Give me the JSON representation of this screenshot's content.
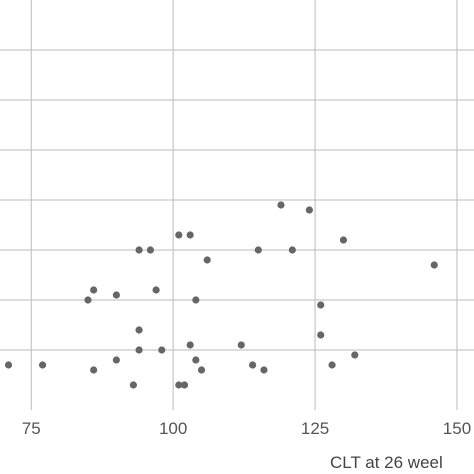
{
  "chart_data": {
    "type": "scatter",
    "title": "",
    "xlabel": "CLT at 26 weel",
    "ylabel": "",
    "grid": true,
    "xlim": [
      69.5,
      153
    ],
    "ylim": [
      0.5,
      8.5
    ],
    "x_ticks": [
      75,
      100,
      125,
      150
    ],
    "x_tick_labels": [
      "75",
      "100",
      "125",
      "150"
    ],
    "y_gridlines": [
      1.5,
      2.5,
      3.5,
      4.5,
      5.5,
      6.5,
      7.5
    ],
    "point_color": "#666666",
    "grid_color": "#bbbbbb",
    "points": [
      {
        "x": 71,
        "y": 1.2
      },
      {
        "x": 77,
        "y": 1.2
      },
      {
        "x": 86,
        "y": 1.1
      },
      {
        "x": 90,
        "y": 1.3
      },
      {
        "x": 93,
        "y": 0.8
      },
      {
        "x": 94,
        "y": 1.5
      },
      {
        "x": 98,
        "y": 1.5
      },
      {
        "x": 101,
        "y": 0.8
      },
      {
        "x": 102,
        "y": 0.8
      },
      {
        "x": 103,
        "y": 1.6
      },
      {
        "x": 104,
        "y": 1.3
      },
      {
        "x": 105,
        "y": 1.1
      },
      {
        "x": 112,
        "y": 1.6
      },
      {
        "x": 114,
        "y": 1.2
      },
      {
        "x": 116,
        "y": 1.1
      },
      {
        "x": 128,
        "y": 1.2
      },
      {
        "x": 132,
        "y": 1.4
      },
      {
        "x": 94,
        "y": 1.9
      },
      {
        "x": 126,
        "y": 1.8
      },
      {
        "x": 85,
        "y": 2.5
      },
      {
        "x": 86,
        "y": 2.7
      },
      {
        "x": 90,
        "y": 2.6
      },
      {
        "x": 97,
        "y": 2.7
      },
      {
        "x": 104,
        "y": 2.5
      },
      {
        "x": 126,
        "y": 2.4
      },
      {
        "x": 106,
        "y": 3.3
      },
      {
        "x": 146,
        "y": 3.2
      },
      {
        "x": 94,
        "y": 3.5
      },
      {
        "x": 96,
        "y": 3.5
      },
      {
        "x": 115,
        "y": 3.5
      },
      {
        "x": 121,
        "y": 3.5
      },
      {
        "x": 101,
        "y": 3.8
      },
      {
        "x": 103,
        "y": 3.8
      },
      {
        "x": 130,
        "y": 3.7
      },
      {
        "x": 119,
        "y": 4.4
      },
      {
        "x": 124,
        "y": 4.3
      }
    ]
  }
}
